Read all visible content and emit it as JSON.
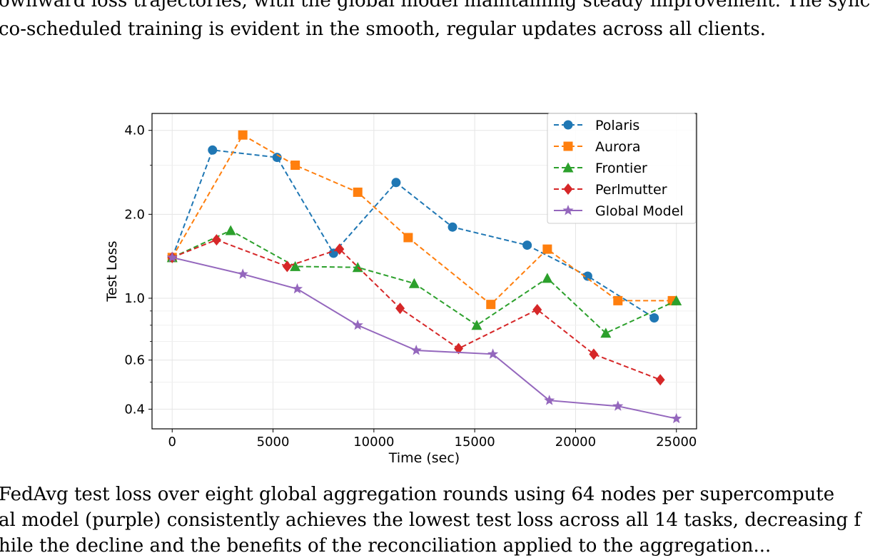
{
  "text": {
    "intro_line1": "ownward loss trajectories, with the global model maintaining steady improvement.  The sync",
    "intro_line2": "co-scheduled training is evident in the smooth, regular updates across all clients.",
    "caption_line1": "FedAvg test loss over eight global aggregation rounds using 64 nodes per supercompute",
    "caption_line2": "al model (purple) consistently achieves the lowest test loss across all 14 tasks, decreasing f",
    "caption_line3": "hile the decline and the benefits of the reconciliation applied to the aggregation..."
  },
  "chart_data": {
    "type": "line",
    "xlabel": "Time (sec)",
    "ylabel": "Test Loss",
    "yscale": "log",
    "xlim": [
      -1000,
      26000
    ],
    "ylim": [
      0.34,
      4.6
    ],
    "xticks": [
      0,
      5000,
      10000,
      15000,
      20000,
      25000
    ],
    "xtick_labels": [
      "0",
      "5000",
      "10000",
      "15000",
      "20000",
      "25000"
    ],
    "yticks": [
      0.4,
      0.6,
      1.0,
      2.0,
      4.0
    ],
    "ytick_labels": [
      "0.4",
      "0.6",
      "1.0",
      "2.0",
      "4.0"
    ],
    "grid": true,
    "legend_position": "top-right",
    "series": [
      {
        "name": "Polaris",
        "color": "#1f77b4",
        "marker": "circle",
        "linestyle": "dashed",
        "x": [
          0,
          2000,
          5200,
          8000,
          11100,
          13900,
          17600,
          20600,
          23900
        ],
        "y": [
          1.4,
          3.4,
          3.2,
          1.45,
          2.6,
          1.8,
          1.55,
          1.2,
          0.85
        ]
      },
      {
        "name": "Aurora",
        "color": "#ff7f0e",
        "marker": "square",
        "linestyle": "dashed",
        "x": [
          0,
          3500,
          6100,
          9200,
          11700,
          15800,
          18600,
          22100,
          24800
        ],
        "y": [
          1.4,
          3.85,
          3.0,
          2.4,
          1.65,
          0.95,
          1.5,
          0.98,
          0.98
        ]
      },
      {
        "name": "Frontier",
        "color": "#2ca02c",
        "marker": "triangle",
        "linestyle": "dashed",
        "x": [
          0,
          2900,
          6100,
          9200,
          12000,
          15100,
          18600,
          21500,
          25000
        ],
        "y": [
          1.4,
          1.75,
          1.3,
          1.29,
          1.13,
          0.8,
          1.18,
          0.75,
          0.98
        ]
      },
      {
        "name": "Perlmutter",
        "color": "#d62728",
        "marker": "diamond",
        "linestyle": "dashed",
        "x": [
          0,
          2200,
          5700,
          8300,
          11300,
          14200,
          18100,
          20900,
          24200
        ],
        "y": [
          1.4,
          1.62,
          1.3,
          1.5,
          0.92,
          0.66,
          0.91,
          0.63,
          0.51
        ]
      },
      {
        "name": "Global Model",
        "color": "#9467bd",
        "marker": "star",
        "linestyle": "solid",
        "x": [
          0,
          3500,
          6200,
          9200,
          12100,
          15900,
          18700,
          22100,
          25000
        ],
        "y": [
          1.4,
          1.22,
          1.08,
          0.8,
          0.65,
          0.63,
          0.43,
          0.41,
          0.37
        ]
      }
    ]
  }
}
